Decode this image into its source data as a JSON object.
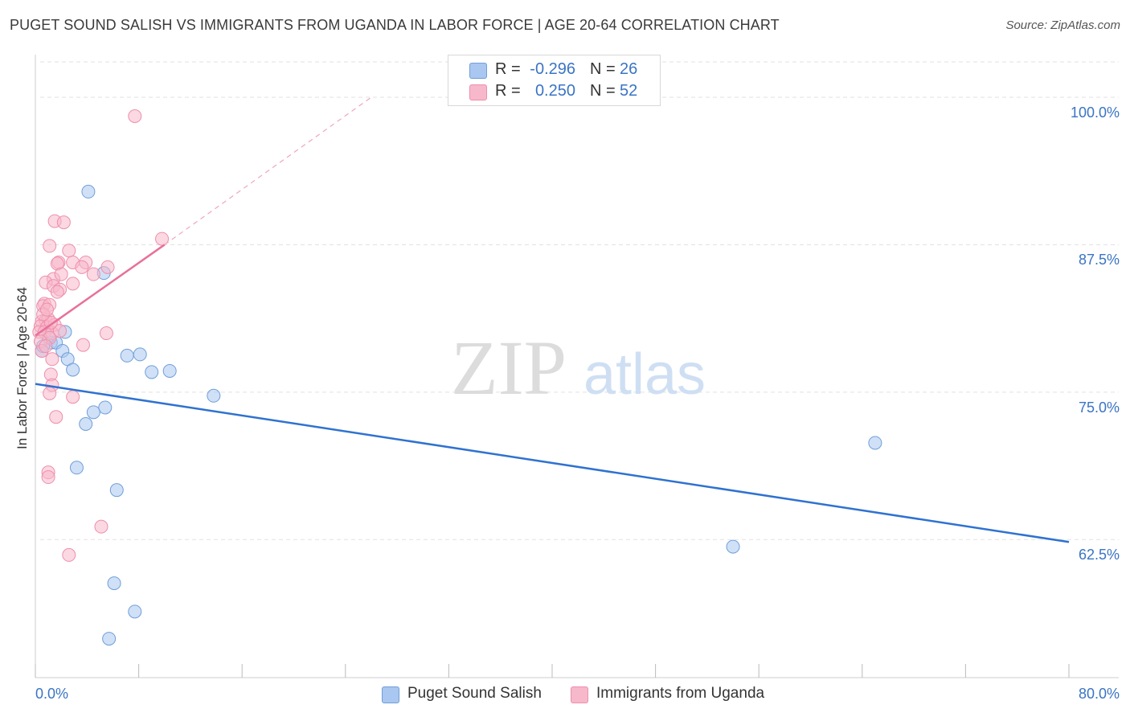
{
  "title": "PUGET SOUND SALISH VS IMMIGRANTS FROM UGANDA IN LABOR FORCE | AGE 20-64 CORRELATION CHART",
  "source": "Source: ZipAtlas.com",
  "watermark": {
    "zip": "ZIP",
    "atlas": "atlas"
  },
  "legend": {
    "rows": [
      {
        "r_label": "R =",
        "r_value": "-0.296",
        "n_label": "N =",
        "n_value": "26"
      },
      {
        "r_label": "R =",
        "r_value": "0.250",
        "n_label": "N =",
        "n_value": "52"
      }
    ]
  },
  "bottom_legend": [
    "Puget Sound Salish",
    "Immigrants from Uganda"
  ],
  "colors": {
    "series1_fill": "#a9c7f0",
    "series1_stroke": "#6f9fd8",
    "series1_line": "#2f72d0",
    "series2_fill": "#f7b8cb",
    "series2_stroke": "#ee8fab",
    "series2_line": "#e8709a",
    "tick_text": "#3a74c4",
    "grid": "#e2e2e2"
  },
  "chart_data": {
    "type": "scatter",
    "title": "PUGET SOUND SALISH VS IMMIGRANTS FROM UGANDA IN LABOR FORCE | AGE 20-64 CORRELATION CHART",
    "xlabel": "",
    "ylabel": "In Labor Force | Age 20-64",
    "xlim": [
      0,
      80
    ],
    "ylim": [
      50.8,
      103.0
    ],
    "x_tick_labels": [
      "0.0%",
      "80.0%"
    ],
    "y_ticks": [
      62.5,
      75.0,
      87.5,
      100.0
    ],
    "y_tick_labels": [
      "62.5%",
      "75.0%",
      "87.5%",
      "100.0%"
    ],
    "grid": "horizontal dashed",
    "legend_position": "top-center",
    "series": [
      {
        "name": "Puget Sound Salish",
        "r": -0.296,
        "n": 26,
        "trend": {
          "x": [
            0.0,
            80.0
          ],
          "y": [
            75.7,
            62.3
          ]
        },
        "points": [
          [
            0.5,
            78.5
          ],
          [
            1.2,
            79.2
          ],
          [
            1.6,
            79.2
          ],
          [
            2.3,
            80.1
          ],
          [
            2.1,
            78.5
          ],
          [
            2.5,
            77.8
          ],
          [
            2.9,
            76.9
          ],
          [
            4.1,
            92.0
          ],
          [
            5.3,
            85.1
          ],
          [
            7.1,
            78.1
          ],
          [
            8.1,
            78.2
          ],
          [
            9.0,
            76.7
          ],
          [
            10.4,
            76.8
          ],
          [
            13.8,
            74.7
          ],
          [
            5.4,
            73.7
          ],
          [
            4.5,
            73.3
          ],
          [
            3.9,
            72.3
          ],
          [
            3.2,
            68.6
          ],
          [
            6.3,
            66.7
          ],
          [
            6.1,
            58.8
          ],
          [
            7.7,
            56.4
          ],
          [
            5.7,
            54.1
          ],
          [
            54.0,
            61.9
          ],
          [
            65.0,
            70.7
          ],
          [
            1.0,
            79.7
          ],
          [
            0.6,
            78.9
          ]
        ]
      },
      {
        "name": "Immigrants from Uganda",
        "r": 0.25,
        "n": 52,
        "trend": {
          "x": [
            0.0,
            10.0
          ],
          "y": [
            79.8,
            87.5
          ],
          "dashed_extension": {
            "x": [
              10.0,
              26.0
            ],
            "y": [
              87.5,
              100.0
            ]
          }
        },
        "points": [
          [
            7.7,
            98.4
          ],
          [
            1.5,
            89.5
          ],
          [
            2.2,
            89.4
          ],
          [
            1.1,
            87.4
          ],
          [
            1.8,
            86.0
          ],
          [
            2.6,
            87.0
          ],
          [
            2.9,
            86.0
          ],
          [
            3.9,
            86.0
          ],
          [
            1.7,
            85.9
          ],
          [
            3.6,
            85.6
          ],
          [
            5.6,
            85.6
          ],
          [
            1.4,
            84.6
          ],
          [
            2.0,
            85.0
          ],
          [
            0.8,
            84.3
          ],
          [
            1.4,
            84.0
          ],
          [
            2.9,
            84.2
          ],
          [
            4.5,
            85.0
          ],
          [
            1.9,
            83.7
          ],
          [
            1.7,
            83.5
          ],
          [
            0.7,
            82.5
          ],
          [
            0.6,
            82.3
          ],
          [
            1.1,
            82.4
          ],
          [
            0.5,
            81.0
          ],
          [
            0.8,
            81.1
          ],
          [
            1.0,
            81.2
          ],
          [
            0.4,
            80.6
          ],
          [
            0.9,
            80.5
          ],
          [
            1.5,
            80.7
          ],
          [
            0.3,
            80.1
          ],
          [
            0.7,
            80.1
          ],
          [
            1.3,
            80.0
          ],
          [
            1.9,
            80.2
          ],
          [
            5.5,
            80.0
          ],
          [
            9.8,
            88.0
          ],
          [
            1.1,
            79.6
          ],
          [
            0.4,
            79.3
          ],
          [
            0.5,
            78.5
          ],
          [
            3.7,
            79.0
          ],
          [
            1.3,
            77.8
          ],
          [
            1.2,
            76.5
          ],
          [
            1.3,
            75.6
          ],
          [
            1.1,
            74.9
          ],
          [
            2.9,
            74.6
          ],
          [
            1.6,
            72.9
          ],
          [
            1.0,
            68.2
          ],
          [
            1.0,
            67.8
          ],
          [
            5.1,
            63.6
          ],
          [
            2.6,
            61.2
          ],
          [
            0.8,
            78.9
          ],
          [
            1.2,
            80.9
          ],
          [
            0.6,
            81.6
          ],
          [
            0.9,
            82.0
          ]
        ]
      }
    ]
  }
}
